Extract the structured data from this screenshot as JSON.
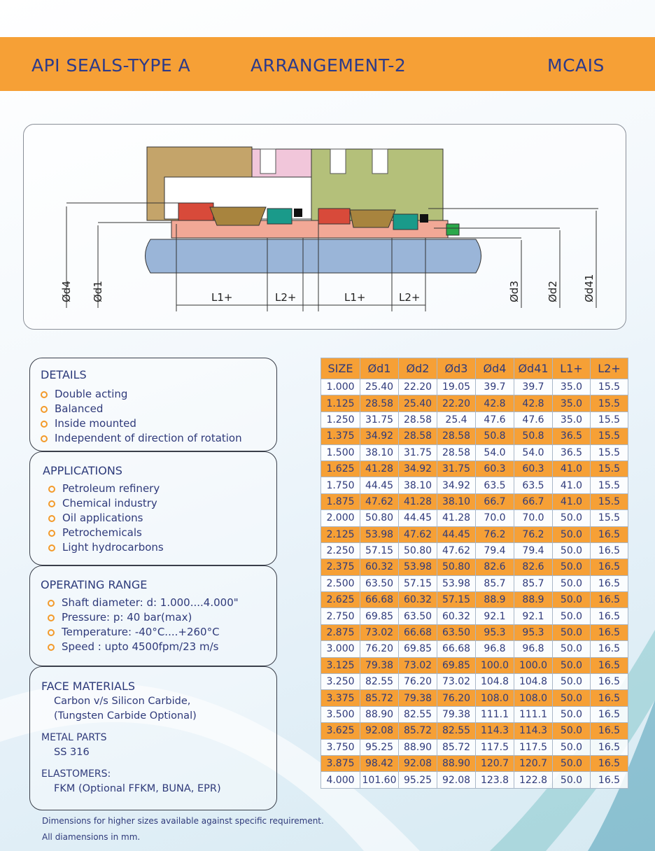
{
  "header": {
    "left": "API SEALS-TYPE A",
    "center": "ARRANGEMENT-2",
    "right": "MCAIS"
  },
  "drawing": {
    "labels": {
      "d4": "Ød4",
      "d1": "Ød1",
      "l1a": "L1+",
      "l2a": "L2+",
      "l1b": "L1+",
      "l2b": "L2+",
      "d3": "Ød3",
      "d2": "Ød2",
      "d41": "Ød41"
    }
  },
  "details": {
    "title": "DETAILS",
    "items": [
      "Double acting",
      "Balanced",
      "Inside mounted",
      "Independent of direction of rotation"
    ]
  },
  "applications": {
    "title": "APPLICATIONS",
    "items": [
      "Petroleum refinery",
      "Chemical industry",
      "Oil applications",
      "Petrochemicals",
      "Light hydrocarbons"
    ]
  },
  "operating": {
    "title": "OPERATING RANGE",
    "items": [
      "Shaft diameter: d: 1.000....4.000\"",
      "Pressure: p: 40 bar(max)",
      "Temperature: -40°C....+260°C",
      "Speed : upto 4500fpm/23 m/s"
    ]
  },
  "materials": {
    "face_title": "FACE MATERIALS",
    "face_lines": [
      "Carbon v/s Silicon Carbide,",
      "(Tungsten Carbide Optional)"
    ],
    "metal_title": "METAL PARTS",
    "metal": "SS 316",
    "elast_title": "ELASTOMERS:",
    "elast": "FKM (Optional FFKM, BUNA, EPR)"
  },
  "table": {
    "headers": [
      "SIZE",
      "Ød1",
      "Ød2",
      "Ød3",
      "Ød4",
      "Ød41",
      "L1+",
      "L2+"
    ],
    "rows": [
      [
        "1.000",
        "25.40",
        "22.20",
        "19.05",
        "39.7",
        "39.7",
        "35.0",
        "15.5"
      ],
      [
        "1.125",
        "28.58",
        "25.40",
        "22.20",
        "42.8",
        "42.8",
        "35.0",
        "15.5"
      ],
      [
        "1.250",
        "31.75",
        "28.58",
        "25.4",
        "47.6",
        "47.6",
        "35.0",
        "15.5"
      ],
      [
        "1.375",
        "34.92",
        "28.58",
        "28.58",
        "50.8",
        "50.8",
        "36.5",
        "15.5"
      ],
      [
        "1.500",
        "38.10",
        "31.75",
        "28.58",
        "54.0",
        "54.0",
        "36.5",
        "15.5"
      ],
      [
        "1.625",
        "41.28",
        "34.92",
        "31.75",
        "60.3",
        "60.3",
        "41.0",
        "15.5"
      ],
      [
        "1.750",
        "44.45",
        "38.10",
        "34.92",
        "63.5",
        "63.5",
        "41.0",
        "15.5"
      ],
      [
        "1.875",
        "47.62",
        "41.28",
        "38.10",
        "66.7",
        "66.7",
        "41.0",
        "15.5"
      ],
      [
        "2.000",
        "50.80",
        "44.45",
        "41.28",
        "70.0",
        "70.0",
        "50.0",
        "15.5"
      ],
      [
        "2.125",
        "53.98",
        "47.62",
        "44.45",
        "76.2",
        "76.2",
        "50.0",
        "16.5"
      ],
      [
        "2.250",
        "57.15",
        "50.80",
        "47.62",
        "79.4",
        "79.4",
        "50.0",
        "16.5"
      ],
      [
        "2.375",
        "60.32",
        "53.98",
        "50.80",
        "82.6",
        "82.6",
        "50.0",
        "16.5"
      ],
      [
        "2.500",
        "63.50",
        "57.15",
        "53.98",
        "85.7",
        "85.7",
        "50.0",
        "16.5"
      ],
      [
        "2.625",
        "66.68",
        "60.32",
        "57.15",
        "88.9",
        "88.9",
        "50.0",
        "16.5"
      ],
      [
        "2.750",
        "69.85",
        "63.50",
        "60.32",
        "92.1",
        "92.1",
        "50.0",
        "16.5"
      ],
      [
        "2.875",
        "73.02",
        "66.68",
        "63.50",
        "95.3",
        "95.3",
        "50.0",
        "16.5"
      ],
      [
        "3.000",
        "76.20",
        "69.85",
        "66.68",
        "96.8",
        "96.8",
        "50.0",
        "16.5"
      ],
      [
        "3.125",
        "79.38",
        "73.02",
        "69.85",
        "100.0",
        "100.0",
        "50.0",
        "16.5"
      ],
      [
        "3.250",
        "82.55",
        "76.20",
        "73.02",
        "104.8",
        "104.8",
        "50.0",
        "16.5"
      ],
      [
        "3.375",
        "85.72",
        "79.38",
        "76.20",
        "108.0",
        "108.0",
        "50.0",
        "16.5"
      ],
      [
        "3.500",
        "88.90",
        "82.55",
        "79.38",
        "111.1",
        "111.1",
        "50.0",
        "16.5"
      ],
      [
        "3.625",
        "92.08",
        "85.72",
        "82.55",
        "114.3",
        "114.3",
        "50.0",
        "16.5"
      ],
      [
        "3.750",
        "95.25",
        "88.90",
        "85.72",
        "117.5",
        "117.5",
        "50.0",
        "16.5"
      ],
      [
        "3.875",
        "98.42",
        "92.08",
        "88.90",
        "120.7",
        "120.7",
        "50.0",
        "16.5"
      ],
      [
        "4.000",
        "101.60",
        "95.25",
        "92.08",
        "123.8",
        "122.8",
        "50.0",
        "16.5"
      ]
    ]
  },
  "notes": [
    "Dimensions for higher sizes available against specific requirement.",
    "All diamensions in mm."
  ],
  "colors": {
    "accent": "#f6a036",
    "text": "#2c3a8a"
  }
}
